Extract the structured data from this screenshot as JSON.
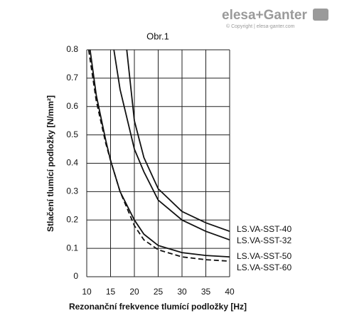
{
  "logo": {
    "text": "elesa+Ganter",
    "copyright": "© Copyright | elesa-ganter.com"
  },
  "chart_data": {
    "type": "line",
    "title": "Obr.1",
    "x_label": "Rezonanční frekvence tlumící podložky [Hz]",
    "y_label": "Stlačení tlumící podložky [N/mm²]",
    "xlim": [
      10,
      40
    ],
    "xticks": [
      10,
      15,
      20,
      25,
      30,
      35,
      40
    ],
    "ylim": [
      0,
      0.8
    ],
    "yticks": [
      0,
      0.1,
      0.2,
      0.3,
      0.4,
      0.5,
      0.6,
      0.7,
      0.8
    ],
    "grid": true,
    "series": [
      {
        "name": "LS.VA-SST-40",
        "color": "#111111",
        "dashed": false,
        "x": [
          18.4,
          20,
          22,
          25,
          30,
          35,
          40
        ],
        "values": [
          0.8,
          0.55,
          0.42,
          0.31,
          0.23,
          0.19,
          0.16
        ]
      },
      {
        "name": "LS.VA-SST-32",
        "color": "#111111",
        "dashed": false,
        "x": [
          15.7,
          17,
          20,
          22,
          25,
          30,
          35,
          40
        ],
        "values": [
          0.8,
          0.66,
          0.45,
          0.37,
          0.27,
          0.2,
          0.16,
          0.13
        ]
      },
      {
        "name": "LS.VA-SST-50",
        "color": "#111111",
        "dashed": false,
        "x": [
          10.7,
          12,
          14,
          15,
          17,
          20,
          22,
          25,
          30,
          35,
          40
        ],
        "values": [
          0.8,
          0.64,
          0.48,
          0.41,
          0.3,
          0.2,
          0.15,
          0.11,
          0.085,
          0.075,
          0.07
        ]
      },
      {
        "name": "LS.VA-SST-60",
        "color": "#111111",
        "dashed": true,
        "x": [
          10.4,
          12,
          14,
          15,
          17,
          20,
          22,
          25,
          30,
          35,
          40
        ],
        "values": [
          0.8,
          0.62,
          0.47,
          0.41,
          0.3,
          0.18,
          0.13,
          0.095,
          0.07,
          0.06,
          0.055
        ]
      }
    ]
  }
}
